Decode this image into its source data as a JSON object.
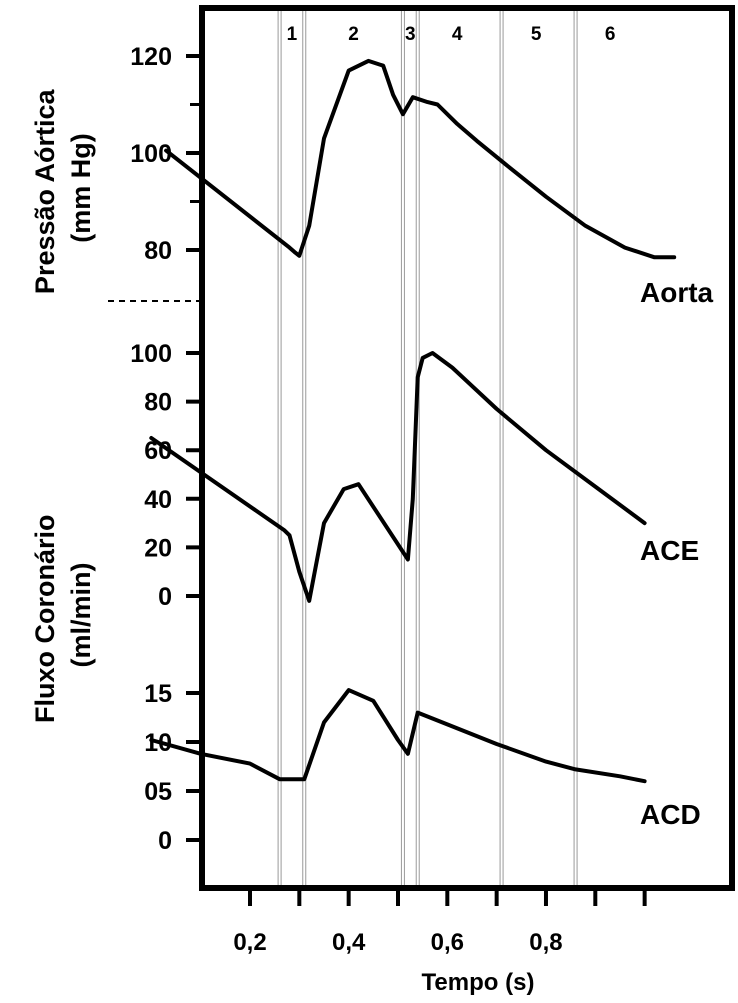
{
  "chart_data": {
    "type": "line",
    "xlabel": "Tempo (s)",
    "x_ticks": [
      0.2,
      0.3,
      0.4,
      0.5,
      0.6,
      0.7,
      0.8,
      0.9,
      1.0
    ],
    "x_tick_labels": [
      {
        "value": 0.2,
        "label": "0,2"
      },
      {
        "value": 0.4,
        "label": "0,4"
      },
      {
        "value": 0.6,
        "label": "0,6"
      },
      {
        "value": 0.8,
        "label": "0,8"
      }
    ],
    "phase_boundaries": [
      0.26,
      0.31,
      0.51,
      0.54,
      0.71,
      0.86
    ],
    "phases": [
      {
        "label": "1",
        "x": 0.285
      },
      {
        "label": "2",
        "x": 0.41
      },
      {
        "label": "3",
        "x": 0.525
      },
      {
        "label": "4",
        "x": 0.62
      },
      {
        "label": "5",
        "x": 0.78
      },
      {
        "label": "6",
        "x": 0.93
      }
    ],
    "panels": [
      {
        "id": "aorta",
        "name": "Aorta",
        "ylabel": "Pressão Aórtica\n(mm Hg)",
        "y_ticks": [
          {
            "value": 80,
            "label": "80"
          },
          {
            "value": 100,
            "label": "100"
          },
          {
            "value": 120,
            "label": "120"
          }
        ],
        "x": [
          0.03,
          0.28,
          0.29,
          0.3,
          0.32,
          0.35,
          0.4,
          0.44,
          0.47,
          0.49,
          0.51,
          0.53,
          0.56,
          0.58,
          0.62,
          0.66,
          0.72,
          0.8,
          0.88,
          0.96,
          1.02,
          1.06
        ],
        "values": [
          100.5,
          80.5,
          79.6,
          78.8,
          85,
          103,
          117,
          119,
          118,
          112,
          108,
          111.5,
          110.5,
          110,
          106,
          102.5,
          97.5,
          91,
          85,
          80.5,
          78.5,
          78.5
        ]
      },
      {
        "id": "ace",
        "name": "ACE",
        "ylabel": "Fluxo Coronário\n(ml/min)",
        "y_ticks": [
          {
            "value": 0,
            "label": "0"
          },
          {
            "value": 20,
            "label": "20"
          },
          {
            "value": 40,
            "label": "40"
          },
          {
            "value": 60,
            "label": "60"
          },
          {
            "value": 80,
            "label": "80"
          },
          {
            "value": 100,
            "label": "100"
          }
        ],
        "x": [
          0.0,
          0.27,
          0.28,
          0.3,
          0.32,
          0.35,
          0.39,
          0.42,
          0.52,
          0.53,
          0.54,
          0.55,
          0.57,
          0.61,
          0.7,
          0.8,
          0.9,
          1.0
        ],
        "values": [
          65,
          27,
          25,
          10,
          -2,
          30,
          44,
          46,
          15,
          40,
          90,
          98,
          100,
          94,
          77,
          60,
          45,
          30
        ]
      },
      {
        "id": "acd",
        "name": "ACD",
        "y_ticks": [
          {
            "value": 0,
            "label": "0"
          },
          {
            "value": 5,
            "label": "05"
          },
          {
            "value": 10,
            "label": "10"
          },
          {
            "value": 15,
            "label": "15"
          }
        ],
        "x": [
          0.0,
          0.1,
          0.2,
          0.26,
          0.3,
          0.31,
          0.35,
          0.4,
          0.45,
          0.5,
          0.52,
          0.54,
          0.6,
          0.7,
          0.8,
          0.86,
          0.95,
          1.0
        ],
        "values": [
          10.2,
          8.8,
          7.8,
          6.2,
          6.2,
          6.2,
          12,
          15.3,
          14.2,
          10.2,
          8.8,
          13,
          11.8,
          9.8,
          8.0,
          7.2,
          6.5,
          6.0
        ]
      }
    ]
  }
}
